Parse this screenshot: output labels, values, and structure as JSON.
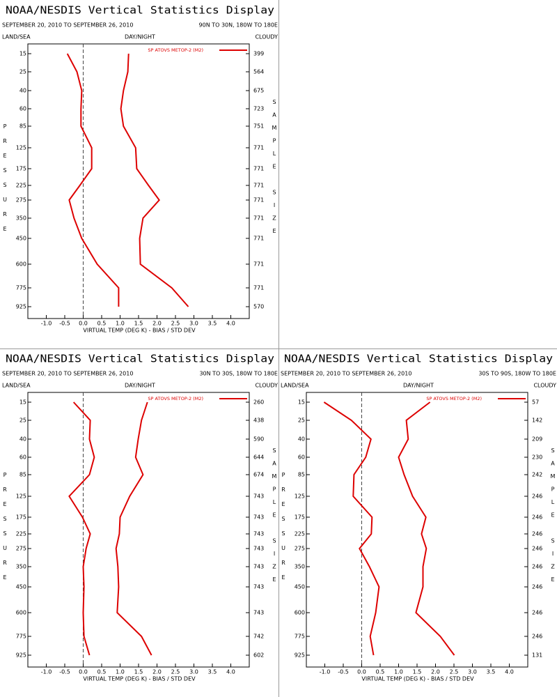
{
  "chart_data": [
    {
      "type": "line",
      "title": "NOAA/NESDIS Vertical Statistics Display",
      "subtitle": "SEPTEMBER 20, 2010 TO SEPTEMBER 26, 2010",
      "region": "90N TO 30N, 180W TO 180E",
      "land_sea_label": "LAND/SEA",
      "day_night_label": "DAY/NIGHT",
      "cloud_label": "CLOUDY",
      "ylabel": "PRESSURE",
      "y2label": "SAMPLE SIZE",
      "xlabel": "VIRTUAL TEMP (DEG K) - BIAS / STD DEV",
      "legend_label": "SP ATOVS METOP-2 (M2)",
      "categories": [
        15,
        25,
        40,
        60,
        85,
        125,
        175,
        225,
        275,
        350,
        450,
        600,
        775,
        925
      ],
      "sample_size": [
        399,
        564,
        675,
        723,
        751,
        771,
        771,
        771,
        771,
        771,
        771,
        771,
        771,
        570
      ],
      "xlim": [
        -1.5,
        4.5
      ],
      "xticks": [
        {
          "value": -1,
          "label": "-1.0"
        },
        {
          "value": -0.5,
          "label": "-0.5"
        },
        {
          "value": 0,
          "label": "0.0"
        },
        {
          "value": 0.5,
          "label": "0.5"
        },
        {
          "value": 1,
          "label": "1.0"
        },
        {
          "value": 1.5,
          "label": "1.5"
        },
        {
          "value": 2,
          "label": "2.0"
        },
        {
          "value": 2.5,
          "label": "2.5"
        },
        {
          "value": 3,
          "label": "3.0"
        },
        {
          "value": 3.5,
          "label": "3.5"
        },
        {
          "value": 4,
          "label": "4.0"
        }
      ],
      "series": [
        {
          "color": "#dd0000",
          "values": [
            -0.43,
            -0.17,
            -0.04,
            -0.06,
            -0.06,
            0.23,
            0.23,
            -0.09,
            -0.38,
            -0.25,
            -0.04,
            0.38,
            0.96,
            0.96
          ]
        },
        {
          "color": "#dd0000",
          "values": [
            1.23,
            1.21,
            1.09,
            1.02,
            1.09,
            1.42,
            1.45,
            1.77,
            2.06,
            1.62,
            1.53,
            1.55,
            2.4,
            2.85
          ]
        }
      ]
    },
    {
      "type": "line",
      "title": "NOAA/NESDIS Vertical Statistics Display",
      "subtitle": "SEPTEMBER 20, 2010 TO SEPTEMBER 26, 2010",
      "region": "30N TO 30S, 180W TO 180E",
      "land_sea_label": "LAND/SEA",
      "day_night_label": "DAY/NIGHT",
      "cloud_label": "CLOUDY",
      "ylabel": "PRESSURE",
      "y2label": "SAMPLE SIZE",
      "xlabel": "VIRTUAL TEMP (DEG K) - BIAS / STD DEV",
      "legend_label": "SP ATOVS METOP-2 (M2)",
      "categories": [
        15,
        25,
        40,
        60,
        85,
        125,
        175,
        225,
        275,
        350,
        450,
        600,
        775,
        925
      ],
      "sample_size": [
        260,
        438,
        590,
        644,
        674,
        743,
        743,
        743,
        743,
        743,
        743,
        743,
        742,
        602
      ],
      "xlim": [
        -1.5,
        4.5
      ],
      "xticks": [
        {
          "value": -1,
          "label": "-1.0"
        },
        {
          "value": -0.5,
          "label": "-0.5"
        },
        {
          "value": 0,
          "label": "0.0"
        },
        {
          "value": 0.5,
          "label": "0.5"
        },
        {
          "value": 1,
          "label": "1.0"
        },
        {
          "value": 1.5,
          "label": "1.5"
        },
        {
          "value": 2,
          "label": "2.0"
        },
        {
          "value": 2.5,
          "label": "2.5"
        },
        {
          "value": 3,
          "label": "3.0"
        },
        {
          "value": 3.5,
          "label": "3.5"
        },
        {
          "value": 4,
          "label": "4.0"
        }
      ],
      "series": [
        {
          "color": "#dd0000",
          "values": [
            -0.26,
            0.19,
            0.17,
            0.3,
            0.17,
            -0.38,
            -0.02,
            0.19,
            0.08,
            0,
            0.02,
            0,
            0.02,
            0.17
          ]
        },
        {
          "color": "#dd0000",
          "values": [
            1.74,
            1.58,
            1.49,
            1.42,
            1.62,
            1.26,
            1.0,
            0.98,
            0.89,
            0.94,
            0.96,
            0.92,
            1.58,
            1.85
          ]
        }
      ]
    },
    {
      "type": "line",
      "title": "NOAA/NESDIS Vertical Statistics Display",
      "subtitle": "SEPTEMBER 20, 2010 TO SEPTEMBER 26, 2010",
      "region": "30S TO 90S, 180W TO 180E",
      "land_sea_label": "LAND/SEA",
      "day_night_label": "DAY/NIGHT",
      "cloud_label": "CLOUDY",
      "ylabel": "PRESSURE",
      "y2label": "SAMPLE SIZE",
      "xlabel": "VIRTUAL TEMP (DEG K) - BIAS / STD DEV",
      "legend_label": "SP ATOVS METOP-2 (M2)",
      "categories": [
        15,
        25,
        40,
        60,
        85,
        125,
        175,
        225,
        275,
        350,
        450,
        600,
        775,
        925
      ],
      "sample_size": [
        57,
        142,
        209,
        230,
        242,
        246,
        246,
        246,
        246,
        246,
        246,
        246,
        246,
        131
      ],
      "xlim": [
        -1.5,
        4.5
      ],
      "xticks": [
        {
          "value": -1,
          "label": "-1.0"
        },
        {
          "value": -0.5,
          "label": "-0.5"
        },
        {
          "value": 0,
          "label": "0.0"
        },
        {
          "value": 0.5,
          "label": "0.5"
        },
        {
          "value": 1,
          "label": "1.0"
        },
        {
          "value": 1.5,
          "label": "1.5"
        },
        {
          "value": 2,
          "label": "2.0"
        },
        {
          "value": 2.5,
          "label": "2.5"
        },
        {
          "value": 3,
          "label": "3.0"
        },
        {
          "value": 3.5,
          "label": "3.5"
        },
        {
          "value": 4,
          "label": "4.0"
        }
      ],
      "series": [
        {
          "color": "#dd0000",
          "values": [
            -1.02,
            -0.28,
            0.25,
            0.11,
            -0.21,
            -0.23,
            0.28,
            0.26,
            -0.06,
            0.21,
            0.47,
            0.38,
            0.23,
            0.32
          ]
        },
        {
          "color": "#dd0000",
          "values": [
            1.85,
            1.21,
            1.26,
            1.0,
            1.15,
            1.38,
            1.74,
            1.62,
            1.75,
            1.66,
            1.66,
            1.47,
            2.13,
            2.51
          ]
        }
      ]
    }
  ]
}
